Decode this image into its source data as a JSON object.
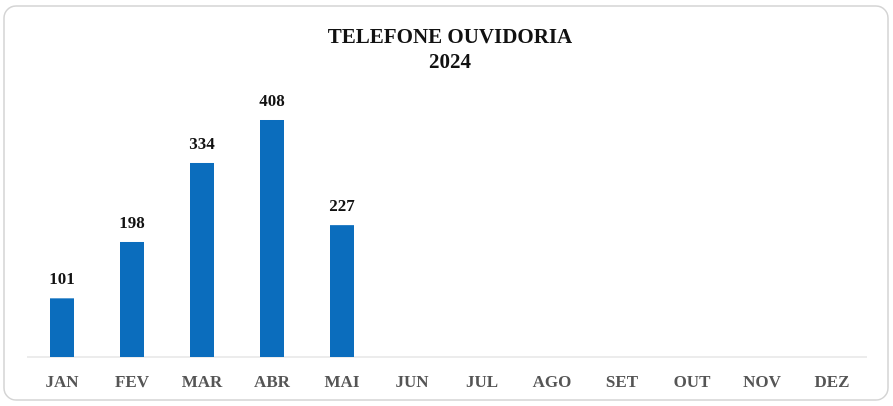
{
  "chart_data": {
    "type": "bar",
    "title": "TELEFONE OUVIDORIA",
    "subtitle": "2024",
    "categories": [
      "JAN",
      "FEV",
      "MAR",
      "ABR",
      "MAI",
      "JUN",
      "JUL",
      "AGO",
      "SET",
      "OUT",
      "NOV",
      "DEZ"
    ],
    "values": [
      101,
      198,
      334,
      408,
      227,
      null,
      null,
      null,
      null,
      null,
      null,
      null
    ],
    "color": "#0b6dbd",
    "ylim": [
      0,
      450
    ]
  }
}
